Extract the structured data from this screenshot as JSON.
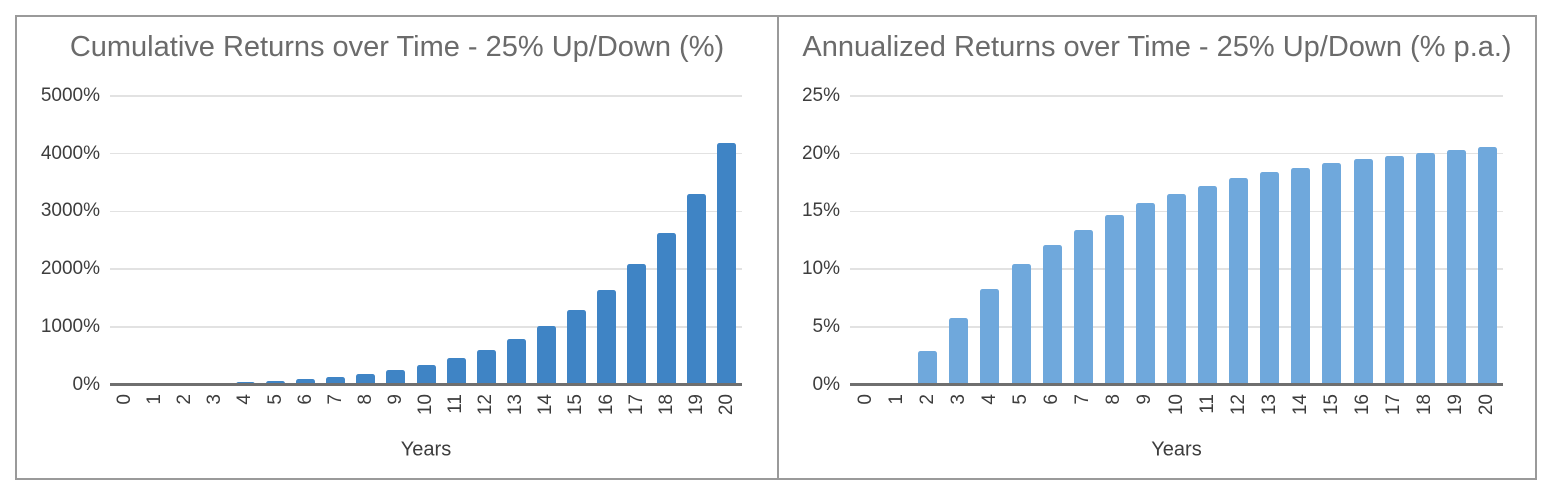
{
  "page": {
    "background": "#ffffff",
    "frame_border_color": "#9a9a9a",
    "gridline_color": "#e2e2e2",
    "axis_line_color": "#6f6f6f",
    "title_color": "#6b6b6b",
    "tick_label_color": "#3d3d3d"
  },
  "chart_data": [
    {
      "type": "bar",
      "title": "Cumulative Returns over Time - 25% Up/Down (%)",
      "xlabel": "Years",
      "ylabel": "",
      "legend": "none",
      "grid": true,
      "bar_color": "#3f84c5",
      "ylim": [
        0,
        5000
      ],
      "y_ticks": [
        {
          "value": 0,
          "label": "0%"
        },
        {
          "value": 1000,
          "label": "1000%"
        },
        {
          "value": 2000,
          "label": "2000%"
        },
        {
          "value": 3000,
          "label": "3000%"
        },
        {
          "value": 4000,
          "label": "4000%"
        },
        {
          "value": 5000,
          "label": "5000%"
        }
      ],
      "categories": [
        "0",
        "1",
        "2",
        "3",
        "4",
        "5",
        "6",
        "7",
        "8",
        "9",
        "10",
        "11",
        "12",
        "13",
        "14",
        "15",
        "16",
        "17",
        "18",
        "19",
        "20"
      ],
      "values": [
        0,
        0,
        6,
        18,
        36,
        60,
        95,
        137,
        190,
        258,
        345,
        460,
        605,
        780,
        1010,
        1295,
        1640,
        2090,
        2630,
        3310,
        4190
      ],
      "unit": "%"
    },
    {
      "type": "bar",
      "title": "Annualized Returns over Time - 25% Up/Down (% p.a.)",
      "xlabel": "Years",
      "ylabel": "",
      "legend": "none",
      "grid": true,
      "bar_color": "#6fa8dc",
      "ylim": [
        0,
        25
      ],
      "y_ticks": [
        {
          "value": 0,
          "label": "0%"
        },
        {
          "value": 5,
          "label": "5%"
        },
        {
          "value": 10,
          "label": "10%"
        },
        {
          "value": 15,
          "label": "15%"
        },
        {
          "value": 20,
          "label": "20%"
        },
        {
          "value": 25,
          "label": "25%"
        }
      ],
      "categories": [
        "0",
        "1",
        "2",
        "3",
        "4",
        "5",
        "6",
        "7",
        "8",
        "9",
        "10",
        "11",
        "12",
        "13",
        "14",
        "15",
        "16",
        "17",
        "18",
        "19",
        "20"
      ],
      "values": [
        0,
        0,
        2.9,
        5.8,
        8.3,
        10.4,
        12.1,
        13.4,
        14.7,
        15.7,
        16.5,
        17.2,
        17.9,
        18.4,
        18.8,
        19.2,
        19.5,
        19.8,
        20.1,
        20.3,
        20.6
      ],
      "unit": "% p.a."
    }
  ]
}
